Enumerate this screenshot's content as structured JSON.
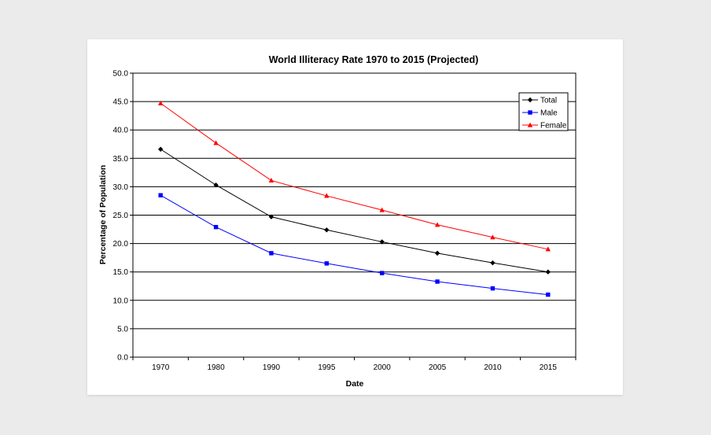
{
  "chart_data": {
    "type": "line",
    "title": "World Illiteracy Rate 1970 to 2015 (Projected)",
    "xlabel": "Date",
    "ylabel": "Percentage of Population",
    "categories": [
      "1970",
      "1980",
      "1990",
      "1995",
      "2000",
      "2005",
      "2010",
      "2015"
    ],
    "ylim": [
      0,
      50
    ],
    "yticks": [
      "0.0",
      "5.0",
      "10.0",
      "15.0",
      "20.0",
      "25.0",
      "30.0",
      "35.0",
      "40.0",
      "45.0",
      "50.0"
    ],
    "grid": true,
    "legend_position": "top-right",
    "series": [
      {
        "name": "Total",
        "color": "#000000",
        "marker": "diamond",
        "values": [
          36.6,
          30.3,
          24.7,
          22.4,
          20.3,
          18.3,
          16.6,
          15.0
        ]
      },
      {
        "name": "Male",
        "color": "#0000ff",
        "marker": "square",
        "values": [
          28.5,
          22.9,
          18.3,
          16.5,
          14.8,
          13.3,
          12.1,
          11.0
        ]
      },
      {
        "name": "Female",
        "color": "#ff0000",
        "marker": "triangle",
        "values": [
          44.7,
          37.7,
          31.1,
          28.4,
          25.9,
          23.3,
          21.1,
          19.0
        ]
      }
    ]
  }
}
